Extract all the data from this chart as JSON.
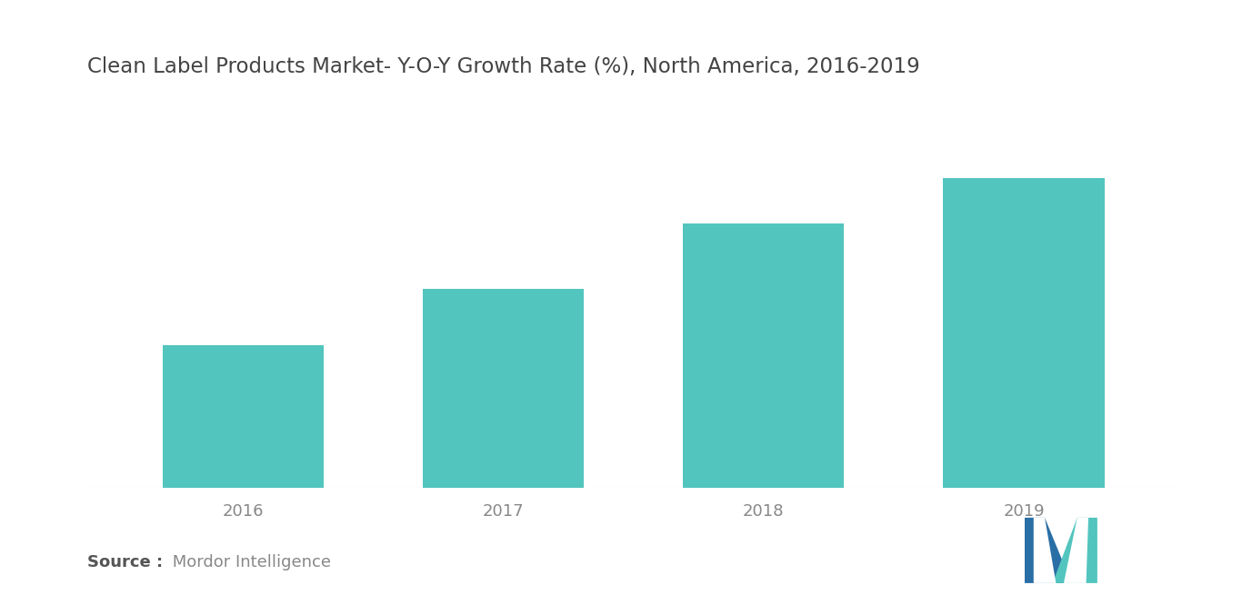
{
  "title": "Clean Label Products Market- Y-O-Y Growth Rate (%), North America, 2016-2019",
  "categories": [
    "2016",
    "2017",
    "2018",
    "2019"
  ],
  "values": [
    3.5,
    4.9,
    6.5,
    7.6
  ],
  "bar_color": "#52C5BE",
  "background_color": "#ffffff",
  "title_fontsize": 16.5,
  "title_color": "#444444",
  "tick_label_color": "#888888",
  "tick_fontsize": 13,
  "source_bold": "Source :",
  "source_normal": " Mordor Intelligence",
  "source_fontsize": 13,
  "ylim": [
    0,
    9.5
  ],
  "bar_width": 0.62,
  "logo_color1": "#2A6EA6",
  "logo_color2": "#52C5BE"
}
